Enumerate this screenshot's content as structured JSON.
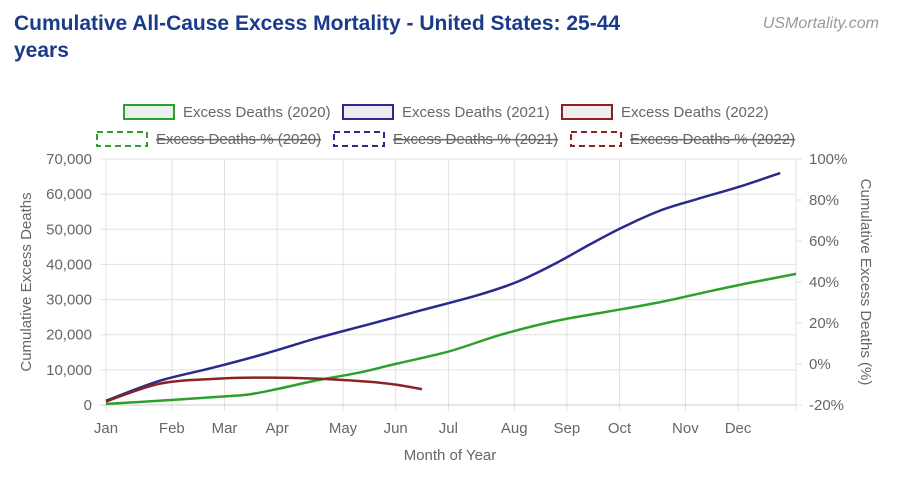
{
  "page": {
    "title": "Cumulative All-Cause Excess Mortality - United States: 25-44 years",
    "watermark": "USMortality.com"
  },
  "chart_data": {
    "type": "line",
    "title": "Cumulative All-Cause Excess Mortality - United States: 25-44 years",
    "xlabel": "Month of Year",
    "ylabel": "Cumulative Excess Deaths",
    "y2label": "Cumulative Excess Deaths (%)",
    "ylim": [
      0,
      70000
    ],
    "y2lim": [
      -20,
      100
    ],
    "xlim": [
      0,
      13.1
    ],
    "x_tick_labels": [
      "Jan",
      "Feb",
      "Mar",
      "Apr",
      "May",
      "Jun",
      "Jul",
      "Aug",
      "Sep",
      "Oct",
      "Nov",
      "Dec"
    ],
    "x_tick_positions": [
      0,
      1.25,
      2.25,
      3.25,
      4.5,
      5.5,
      6.5,
      7.75,
      8.75,
      9.75,
      11,
      12
    ],
    "y_tick_labels": [
      "0",
      "10,000",
      "20,000",
      "30,000",
      "40,000",
      "50,000",
      "60,000",
      "70,000"
    ],
    "y_tick_values": [
      0,
      10000,
      20000,
      30000,
      40000,
      50000,
      60000,
      70000
    ],
    "y2_tick_labels": [
      "-20%",
      "0%",
      "20%",
      "40%",
      "60%",
      "80%",
      "100%"
    ],
    "y2_tick_values": [
      -20,
      0,
      20,
      40,
      60,
      80,
      100
    ],
    "legend_position": "top",
    "series": [
      {
        "name": "Excess Deaths (2020)",
        "color": "#2ca02c",
        "dashed": false,
        "hidden": false,
        "x": [
          0,
          1,
          2,
          2.7,
          3.3,
          4,
          4.8,
          5.5,
          6.5,
          7.5,
          8.5,
          9.5,
          10.5,
          11.5,
          12.3,
          13.1
        ],
        "y": [
          300,
          1200,
          2200,
          3000,
          4700,
          7000,
          9200,
          11700,
          15200,
          20000,
          23800,
          26500,
          29200,
          32500,
          35000,
          37300
        ]
      },
      {
        "name": "Excess Deaths (2021)",
        "color": "#2a2a8c",
        "dashed": false,
        "hidden": false,
        "x": [
          0,
          1,
          2,
          3,
          4,
          5,
          6,
          7,
          7.8,
          8.5,
          9.2,
          9.8,
          10.5,
          11.2,
          12,
          12.8
        ],
        "y": [
          1200,
          6800,
          10500,
          14500,
          19000,
          23000,
          27000,
          31000,
          35000,
          40000,
          45800,
          50500,
          55200,
          58500,
          62000,
          66000
        ]
      },
      {
        "name": "Excess Deaths (2022)",
        "color": "#8b2323",
        "dashed": false,
        "hidden": false,
        "x": [
          0,
          1,
          2,
          3,
          4,
          5,
          5.5,
          6.0
        ],
        "y": [
          1000,
          6000,
          7400,
          7800,
          7500,
          6600,
          5800,
          4500
        ]
      },
      {
        "name": "Excess Deaths % (2020)",
        "color": "#2ca02c",
        "dashed": true,
        "hidden": true,
        "x": [],
        "y": []
      },
      {
        "name": "Excess Deaths % (2021)",
        "color": "#2a2a8c",
        "dashed": true,
        "hidden": true,
        "x": [],
        "y": []
      },
      {
        "name": "Excess Deaths % (2022)",
        "color": "#8b2323",
        "dashed": true,
        "hidden": true,
        "x": [],
        "y": []
      }
    ]
  }
}
